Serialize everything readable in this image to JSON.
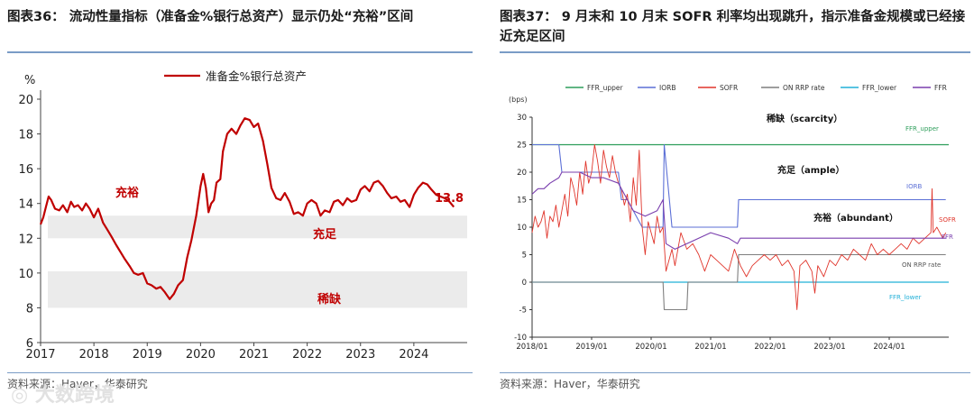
{
  "left": {
    "title": "图表36：  流动性量指标（准备金%银行总资产）显示仍处“充裕”区间",
    "source": "资料来源：Haver，华泰研究",
    "chart_data": {
      "type": "line",
      "title": "",
      "ylabel": "%",
      "ylim": [
        6,
        20
      ],
      "yticks": [
        6,
        8,
        10,
        12,
        14,
        16,
        18,
        20
      ],
      "xlim": [
        2017.0,
        2025.0
      ],
      "xticks": [
        "2017",
        "2018",
        "2019",
        "2020",
        "2021",
        "2022",
        "2023",
        "2024"
      ],
      "legend": [
        "准备金%银行总资产"
      ],
      "color": "#c00000",
      "bands": [
        {
          "label": "充足",
          "from": 12.0,
          "to": 13.3
        },
        {
          "label": "稀缺",
          "from": 8.0,
          "to": 10.1
        }
      ],
      "zone_labels": {
        "ample_high": "充裕",
        "ample": "充足",
        "scarce": "稀缺"
      },
      "end_label": "13.8",
      "series": [
        {
          "name": "准备金%银行总资产",
          "x": [
            2017.0,
            2017.05,
            2017.1,
            2017.15,
            2017.2,
            2017.27,
            2017.35,
            2017.42,
            2017.5,
            2017.57,
            2017.63,
            2017.7,
            2017.78,
            2017.85,
            2017.92,
            2018.0,
            2018.08,
            2018.17,
            2018.25,
            2018.33,
            2018.42,
            2018.5,
            2018.58,
            2018.67,
            2018.75,
            2018.83,
            2018.92,
            2019.0,
            2019.08,
            2019.17,
            2019.25,
            2019.33,
            2019.42,
            2019.5,
            2019.58,
            2019.67,
            2019.75,
            2019.83,
            2019.92,
            2020.0,
            2020.05,
            2020.1,
            2020.15,
            2020.2,
            2020.25,
            2020.3,
            2020.37,
            2020.42,
            2020.5,
            2020.58,
            2020.67,
            2020.75,
            2020.83,
            2020.92,
            2021.0,
            2021.08,
            2021.17,
            2021.25,
            2021.33,
            2021.42,
            2021.5,
            2021.58,
            2021.67,
            2021.75,
            2021.83,
            2021.92,
            2022.0,
            2022.08,
            2022.17,
            2022.25,
            2022.33,
            2022.42,
            2022.5,
            2022.58,
            2022.67,
            2022.75,
            2022.83,
            2022.92,
            2023.0,
            2023.08,
            2023.17,
            2023.25,
            2023.33,
            2023.42,
            2023.5,
            2023.58,
            2023.67,
            2023.75,
            2023.83,
            2023.92,
            2024.0,
            2024.08,
            2024.17,
            2024.25,
            2024.33,
            2024.42,
            2024.5,
            2024.58,
            2024.67,
            2024.75
          ],
          "values": [
            12.8,
            13.2,
            13.8,
            14.4,
            14.2,
            13.7,
            13.6,
            13.9,
            13.5,
            14.1,
            13.8,
            13.9,
            13.6,
            14.0,
            13.7,
            13.2,
            13.7,
            12.9,
            12.5,
            12.1,
            11.6,
            11.2,
            10.8,
            10.4,
            10.0,
            9.9,
            10.0,
            9.4,
            9.3,
            9.1,
            9.2,
            8.9,
            8.5,
            8.8,
            9.3,
            9.6,
            10.9,
            11.9,
            13.3,
            15.0,
            15.7,
            14.9,
            13.5,
            14.0,
            14.2,
            15.2,
            15.4,
            17.0,
            18.0,
            18.3,
            18.0,
            18.5,
            18.9,
            18.8,
            18.4,
            18.6,
            17.6,
            16.3,
            14.9,
            14.3,
            14.2,
            14.6,
            14.1,
            13.4,
            13.5,
            13.3,
            14.0,
            14.2,
            14.0,
            13.3,
            13.6,
            13.5,
            14.1,
            14.2,
            13.9,
            14.3,
            14.1,
            14.2,
            14.8,
            15.0,
            14.7,
            15.2,
            15.3,
            15.0,
            14.6,
            14.3,
            14.4,
            14.1,
            14.2,
            13.8,
            14.5,
            14.9,
            15.2,
            15.1,
            14.8,
            14.5,
            14.4,
            14.3,
            14.1,
            13.8
          ]
        }
      ]
    }
  },
  "right": {
    "title": "图表37：  9 月末和 10 月末 SOFR 利率均出现跳升，指示准备金规模或已经接近充足区间",
    "source": "资料来源：Haver，华泰研究",
    "watermark": "大数跨境",
    "chart_data": {
      "type": "line",
      "ylabel": "(bps)",
      "ylim": [
        -10,
        30
      ],
      "yticks": [
        -10,
        -5,
        0,
        5,
        10,
        15,
        20,
        25,
        30
      ],
      "xlim": [
        2018.0,
        2025.0
      ],
      "xticks": [
        "2018/01",
        "2019/01",
        "2020/01",
        "2021/01",
        "2022/01",
        "2023/01",
        "2024/01"
      ],
      "legend": [
        {
          "name": "FFR_upper",
          "color": "#2e9e5b"
        },
        {
          "name": "IORB",
          "color": "#5b6fd6"
        },
        {
          "name": "SOFR",
          "color": "#e0352b"
        },
        {
          "name": "ON RRP rate",
          "color": "#7f7f7f"
        },
        {
          "name": "FFR_lower",
          "color": "#22b0d8"
        },
        {
          "name": "FFR",
          "color": "#7a3fae"
        }
      ],
      "zone_labels": {
        "scarcity": "稀缺（scarcity）",
        "ample": "充足（ample）",
        "abundant": "充裕（abundant）"
      },
      "line_labels": {
        "ffr_upper": "FFR_upper",
        "iorb": "IORB",
        "sofr": "SOFR",
        "ffr": "FFR",
        "onrrp": "ON RRP rate",
        "ffr_lower": "FFR_lower"
      },
      "series": [
        {
          "name": "FFR_upper",
          "x": [
            2018.0,
            2025.0
          ],
          "values": [
            25,
            25
          ]
        },
        {
          "name": "FFR_lower",
          "x": [
            2018.0,
            2025.0
          ],
          "values": [
            0,
            0
          ]
        },
        {
          "name": "IORB",
          "x": [
            2018.0,
            2018.1,
            2018.2,
            2018.45,
            2018.5,
            2019.0,
            2019.45,
            2019.5,
            2019.6,
            2019.85,
            2019.9,
            2020.2,
            2020.22,
            2020.35,
            2021.2,
            2021.45,
            2021.47,
            2024.95
          ],
          "values": [
            25,
            25,
            25,
            25,
            20,
            20,
            20,
            15,
            15,
            10,
            10,
            10,
            25,
            10,
            10,
            10,
            15,
            15
          ]
        },
        {
          "name": "ON RRP rate",
          "x": [
            2018.0,
            2019.9,
            2020.2,
            2020.22,
            2020.25,
            2020.6,
            2020.62,
            2021.45,
            2021.47,
            2024.95
          ],
          "values": [
            0,
            0,
            0,
            -5,
            -5,
            -5,
            0,
            0,
            5,
            5
          ]
        },
        {
          "name": "FFR",
          "x": [
            2018.0,
            2018.1,
            2018.2,
            2018.3,
            2018.45,
            2018.5,
            2018.8,
            2019.0,
            2019.2,
            2019.45,
            2019.55,
            2019.7,
            2019.9,
            2020.1,
            2020.2,
            2020.25,
            2020.4,
            2020.6,
            2021.0,
            2021.3,
            2021.45,
            2021.5,
            2022.0,
            2023.0,
            2024.0,
            2024.7,
            2024.8,
            2024.95
          ],
          "values": [
            16,
            17,
            17,
            18,
            19,
            20,
            20,
            19,
            19,
            18,
            16,
            13,
            12,
            13,
            15,
            7,
            6,
            7,
            9,
            8,
            7,
            8,
            8,
            8,
            8,
            8,
            8,
            8
          ]
        },
        {
          "name": "SOFR",
          "x": [
            2018.0,
            2018.05,
            2018.1,
            2018.15,
            2018.2,
            2018.25,
            2018.3,
            2018.35,
            2018.4,
            2018.45,
            2018.5,
            2018.55,
            2018.6,
            2018.65,
            2018.7,
            2018.75,
            2018.8,
            2018.85,
            2018.9,
            2018.95,
            2019.0,
            2019.05,
            2019.1,
            2019.15,
            2019.2,
            2019.25,
            2019.3,
            2019.35,
            2019.4,
            2019.45,
            2019.5,
            2019.55,
            2019.6,
            2019.65,
            2019.7,
            2019.75,
            2019.8,
            2019.85,
            2019.9,
            2019.95,
            2020.0,
            2020.05,
            2020.1,
            2020.15,
            2020.2,
            2020.25,
            2020.3,
            2020.35,
            2020.4,
            2020.5,
            2020.6,
            2020.7,
            2020.8,
            2020.9,
            2021.0,
            2021.1,
            2021.2,
            2021.3,
            2021.4,
            2021.5,
            2021.6,
            2021.7,
            2021.8,
            2021.9,
            2022.0,
            2022.1,
            2022.2,
            2022.3,
            2022.4,
            2022.45,
            2022.5,
            2022.6,
            2022.7,
            2022.75,
            2022.8,
            2022.9,
            2023.0,
            2023.1,
            2023.2,
            2023.3,
            2023.4,
            2023.5,
            2023.6,
            2023.7,
            2023.8,
            2023.9,
            2024.0,
            2024.1,
            2024.2,
            2024.3,
            2024.4,
            2024.5,
            2024.6,
            2024.7,
            2024.72,
            2024.74,
            2024.8,
            2024.9,
            2024.95
          ],
          "values": [
            9,
            12,
            10,
            11,
            13,
            8,
            12,
            11,
            14,
            10,
            13,
            16,
            12,
            19,
            17,
            14,
            20,
            16,
            22,
            18,
            20,
            25,
            22,
            18,
            24,
            21,
            19,
            23,
            20,
            18,
            17,
            14,
            16,
            11,
            19,
            14,
            24,
            10,
            5,
            11,
            9,
            7,
            12,
            9,
            10,
            2,
            4,
            6,
            3,
            9,
            6,
            7,
            5,
            2,
            5,
            4,
            3,
            2,
            6,
            3,
            1,
            3,
            4,
            5,
            4,
            5,
            3,
            4,
            2,
            -5,
            3,
            4,
            2,
            -2,
            3,
            1,
            4,
            3,
            5,
            4,
            6,
            5,
            4,
            7,
            5,
            6,
            5,
            6,
            7,
            6,
            8,
            7,
            8,
            9,
            17,
            9,
            10,
            8,
            9
          ]
        }
      ]
    }
  }
}
